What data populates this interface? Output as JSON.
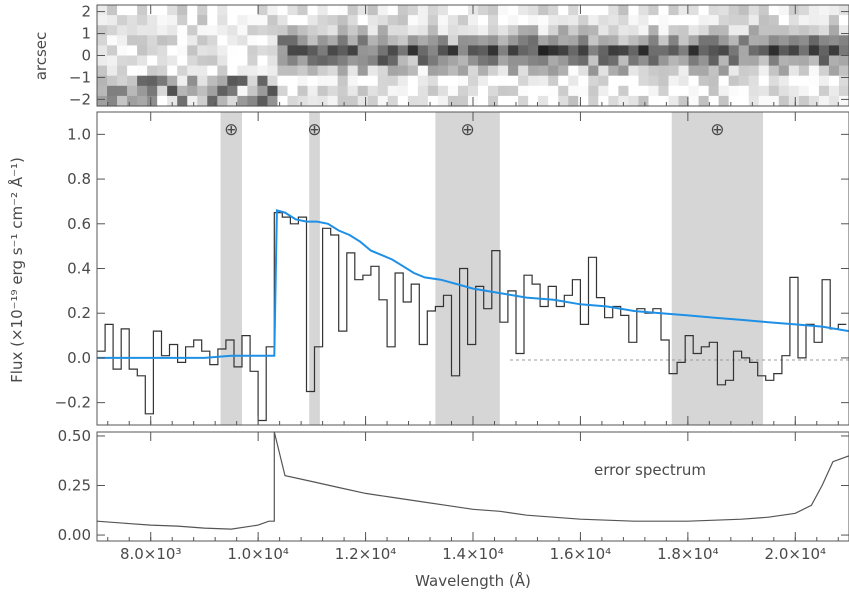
{
  "chart_data": [
    {
      "type": "heatmap",
      "panel": "2d-spectrum",
      "ylabel": "arcsec",
      "yticks": [
        "2",
        "1",
        "0",
        "−1",
        "−2"
      ],
      "ytick_values": [
        2,
        1,
        0,
        -1,
        -2
      ],
      "ylim": [
        -2.3,
        2.3
      ],
      "colormap": "grayscale"
    },
    {
      "type": "line",
      "panel": "1d-spectrum",
      "ylabel": "Flux (×10⁻¹⁹ erg s⁻¹ cm⁻² Å⁻¹)",
      "ylim": [
        -0.3,
        1.1
      ],
      "yticks": [
        "−0.2",
        "0.0",
        "0.2",
        "0.4",
        "0.6",
        "0.8",
        "1.0"
      ],
      "ytick_values": [
        -0.2,
        0.0,
        0.2,
        0.4,
        0.6,
        0.8,
        1.0
      ],
      "xlim": [
        7000,
        21000
      ],
      "telluric_symbol": "⊕",
      "telluric_bands": [
        [
          9300,
          9700
        ],
        [
          10950,
          11150
        ],
        [
          13300,
          14500
        ],
        [
          17700,
          19400
        ]
      ],
      "telluric_marker_x": [
        9500,
        11050,
        13900,
        18550
      ],
      "series": [
        {
          "role": "observed",
          "color": "#333333",
          "step": true,
          "x": [
            7000,
            7150,
            7300,
            7450,
            7600,
            7750,
            7900,
            8050,
            8200,
            8350,
            8500,
            8650,
            8800,
            8950,
            9100,
            9250,
            9400,
            9550,
            9700,
            9850,
            10000,
            10150,
            10300,
            10450,
            10600,
            10750,
            10900,
            11050,
            11200,
            11350,
            11500,
            11650,
            11800,
            11950,
            12100,
            12250,
            12400,
            12550,
            12700,
            12850,
            13000,
            13150,
            13300,
            13450,
            13600,
            13750,
            13900,
            14050,
            14200,
            14350,
            14500,
            14650,
            14800,
            14950,
            15100,
            15250,
            15400,
            15550,
            15700,
            15850,
            16000,
            16150,
            16300,
            16450,
            16600,
            16750,
            16900,
            17050,
            17200,
            17350,
            17500,
            17650,
            17800,
            17950,
            18100,
            18250,
            18400,
            18550,
            18700,
            18850,
            19000,
            19150,
            19300,
            19450,
            19600,
            19750,
            19900,
            20050,
            20200,
            20350,
            20500,
            20650,
            20800
          ],
          "y": [
            0.03,
            0.15,
            -0.05,
            0.13,
            -0.05,
            -0.08,
            -0.25,
            0.12,
            0.01,
            0.06,
            -0.02,
            0.05,
            0.08,
            0.03,
            -0.03,
            0.04,
            0.08,
            -0.04,
            0.1,
            -0.06,
            -0.28,
            0.05,
            0.65,
            0.63,
            0.6,
            0.63,
            -0.15,
            0.05,
            0.58,
            0.55,
            0.12,
            0.47,
            0.35,
            0.37,
            0.41,
            0.26,
            0.05,
            0.38,
            0.25,
            0.33,
            0.06,
            0.21,
            0.23,
            0.28,
            -0.08,
            0.4,
            0.06,
            0.32,
            0.22,
            0.48,
            0.16,
            0.3,
            0.02,
            0.37,
            0.33,
            0.23,
            0.32,
            0.23,
            0.28,
            0.35,
            0.15,
            0.45,
            0.27,
            0.18,
            0.23,
            0.19,
            0.07,
            0.22,
            0.2,
            0.22,
            0.08,
            -0.07,
            -0.02,
            0.1,
            0.02,
            0.05,
            0.07,
            -0.12,
            -0.1,
            0.03,
            0.0,
            -0.02,
            -0.08,
            -0.1,
            -0.07,
            0.01,
            0.36,
            0.0,
            0.15,
            0.07,
            0.35,
            0.13,
            0.15
          ]
        },
        {
          "role": "model",
          "color": "#1e90e6",
          "x": [
            7000,
            8000,
            9000,
            9500,
            10000,
            10300,
            10350,
            10500,
            10700,
            10900,
            11100,
            11300,
            11500,
            11700,
            11900,
            12100,
            12300,
            12500,
            12700,
            12900,
            13100,
            13400,
            13700,
            14000,
            14500,
            15000,
            15500,
            16000,
            16500,
            17000,
            17500,
            18000,
            18500,
            19000,
            19500,
            20000,
            20500,
            21000
          ],
          "y": [
            0.0,
            0.0,
            0.0,
            0.01,
            0.01,
            0.01,
            0.66,
            0.65,
            0.62,
            0.61,
            0.61,
            0.6,
            0.57,
            0.55,
            0.52,
            0.48,
            0.46,
            0.44,
            0.41,
            0.38,
            0.36,
            0.35,
            0.33,
            0.31,
            0.29,
            0.27,
            0.26,
            0.24,
            0.23,
            0.21,
            0.2,
            0.19,
            0.18,
            0.17,
            0.16,
            0.15,
            0.14,
            0.12
          ]
        }
      ]
    },
    {
      "type": "line",
      "panel": "error-spectrum",
      "annotation": "error spectrum",
      "xlabel": "Wavelength (Å)",
      "xticks": [
        "8.0×10³",
        "1.0×10⁴",
        "1.2×10⁴",
        "1.4×10⁴",
        "1.6×10⁴",
        "1.8×10⁴",
        "2.0×10⁴"
      ],
      "xtick_values": [
        8000,
        10000,
        12000,
        14000,
        16000,
        18000,
        20000
      ],
      "xlim": [
        7000,
        21000
      ],
      "ylim": [
        -0.03,
        0.52
      ],
      "yticks": [
        "0.00",
        "0.25",
        "0.50"
      ],
      "ytick_values": [
        0.0,
        0.25,
        0.5
      ],
      "series": [
        {
          "role": "error",
          "color": "#555555",
          "x": [
            7000,
            7500,
            8000,
            8500,
            9000,
            9500,
            10000,
            10200,
            10300,
            10300,
            10500,
            11000,
            11500,
            12000,
            12500,
            13000,
            13500,
            14000,
            14500,
            15000,
            15500,
            16000,
            16500,
            17000,
            17500,
            18000,
            18500,
            19000,
            19500,
            20000,
            20300,
            20500,
            20700,
            21000
          ],
          "y": [
            0.07,
            0.06,
            0.05,
            0.045,
            0.035,
            0.03,
            0.05,
            0.07,
            0.07,
            0.52,
            0.3,
            0.27,
            0.24,
            0.21,
            0.19,
            0.17,
            0.15,
            0.13,
            0.12,
            0.1,
            0.09,
            0.08,
            0.075,
            0.07,
            0.07,
            0.07,
            0.075,
            0.08,
            0.09,
            0.11,
            0.15,
            0.25,
            0.37,
            0.4
          ]
        }
      ]
    }
  ]
}
